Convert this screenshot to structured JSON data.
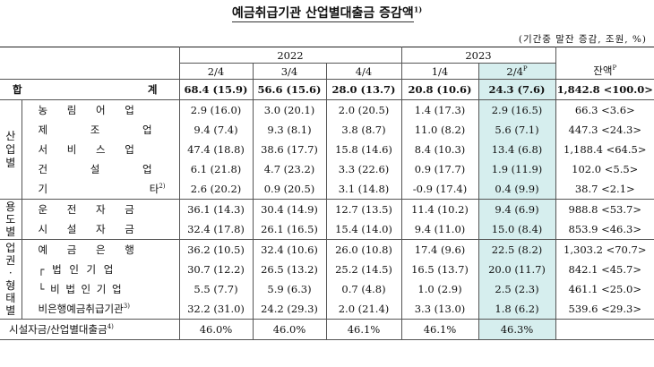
{
  "title": "예금취급기관 산업별대출금 증감액",
  "title_note": "1)",
  "unit": "(기간중 말잔 증감, 조원, %)",
  "header": {
    "years": [
      "2022",
      "2023"
    ],
    "quarters": [
      "2/4",
      "3/4",
      "4/4",
      "1/4",
      "2/4"
    ],
    "quarter_last_sup": "P",
    "balance": "잔액",
    "balance_sup": "P"
  },
  "total": {
    "label_a": "합",
    "label_b": "계",
    "values": [
      "68.4 (15.9)",
      "56.6 (15.6)",
      "28.0 (13.7)",
      "20.8 (10.6)",
      "24.3 (7.6)",
      "1,842.8 <100.0>"
    ]
  },
  "groups": [
    {
      "name": "산업별",
      "rows": [
        {
          "label": "농 림 어 업",
          "sup": "",
          "values": [
            "2.9 (16.0)",
            "3.0 (20.1)",
            "2.0 (20.5)",
            "1.4 (17.3)",
            "2.9 (16.5)",
            "66.3 <3.6>"
          ]
        },
        {
          "label": "제 조 업",
          "sup": "",
          "values": [
            "9.4 (7.4)",
            "9.3 (8.1)",
            "3.8 (8.7)",
            "11.0 (8.2)",
            "5.6 (7.1)",
            "447.3 <24.3>"
          ]
        },
        {
          "label": "서 비 스 업",
          "sup": "",
          "values": [
            "47.4 (18.8)",
            "38.6 (17.7)",
            "15.8 (14.6)",
            "8.4 (10.3)",
            "13.4 (6.8)",
            "1,188.4 <64.5>"
          ]
        },
        {
          "label": "건 설 업",
          "sup": "",
          "values": [
            "6.1 (21.8)",
            "4.7 (23.2)",
            "3.3 (22.6)",
            "0.9 (17.7)",
            "1.9 (11.9)",
            "102.0 <5.5>"
          ]
        },
        {
          "label": "기 타",
          "sup": "2)",
          "values": [
            "2.6 (20.2)",
            "0.9 (20.5)",
            "3.1 (14.8)",
            "-0.9 (17.4)",
            "0.4 (9.9)",
            "38.7 <2.1>"
          ]
        }
      ]
    },
    {
      "name": "용도별",
      "rows": [
        {
          "label": "운 전 자 금",
          "sup": "",
          "values": [
            "36.1 (14.3)",
            "30.4 (14.9)",
            "12.7 (13.5)",
            "11.4 (10.2)",
            "9.4 (6.9)",
            "988.8 <53.7>"
          ]
        },
        {
          "label": "시 설 자 금",
          "sup": "",
          "values": [
            "32.4 (17.8)",
            "26.1 (16.5)",
            "15.4 (14.0)",
            "9.4 (11.0)",
            "15.0 (8.4)",
            "853.9 <46.3>"
          ]
        }
      ]
    },
    {
      "name": "업권·형태별",
      "rows": [
        {
          "label": "예 금 은 행",
          "sup": "",
          "values": [
            "36.2 (10.5)",
            "32.4 (10.6)",
            "26.0 (10.8)",
            "17.4 (9.6)",
            "22.5 (8.2)",
            "1,303.2 <70.7>"
          ]
        },
        {
          "label": "┌ 법 인 기 업",
          "sup": "",
          "values": [
            "30.7 (12.2)",
            "26.5 (13.2)",
            "25.2 (14.5)",
            "16.5 (13.7)",
            "20.0 (11.7)",
            "842.1 <45.7>"
          ]
        },
        {
          "label": "└ 비 법 인 기 업",
          "sup": "",
          "values": [
            "5.5 (7.7)",
            "5.9 (6.3)",
            "0.7 (4.8)",
            "1.0 (2.9)",
            "2.5 (2.3)",
            "461.1 <25.0>"
          ]
        },
        {
          "label": "비은행예금취급기관",
          "sup": "3)",
          "values": [
            "32.2 (31.0)",
            "24.2 (29.3)",
            "2.0 (21.4)",
            "3.3 (13.0)",
            "1.8 (6.2)",
            "539.6 <29.3>"
          ]
        }
      ]
    }
  ],
  "footer": {
    "label": "시설자금/산업별대출금",
    "sup": "4)",
    "values": [
      "46.0%",
      "46.0%",
      "46.1%",
      "46.1%",
      "46.3%",
      ""
    ]
  }
}
